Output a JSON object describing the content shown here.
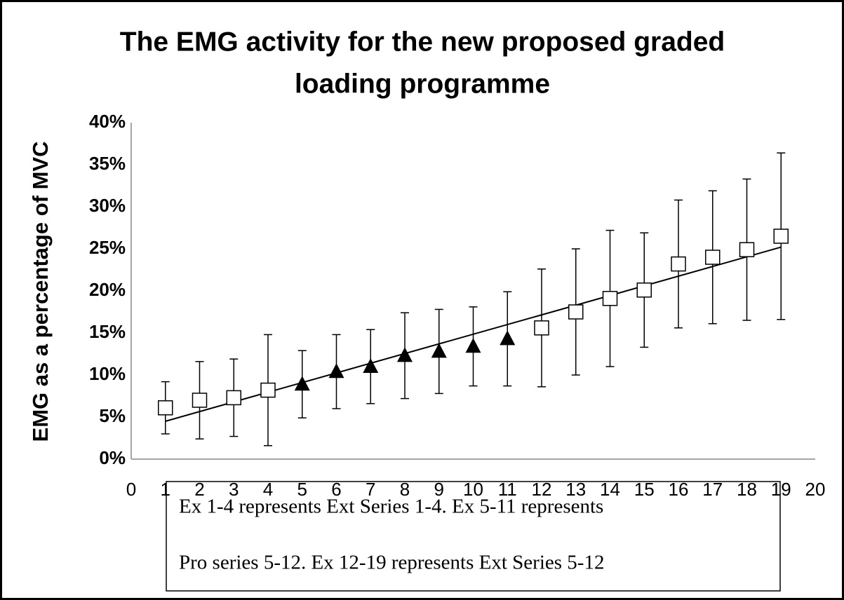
{
  "chart_data": {
    "type": "scatter",
    "title": [
      "The EMG activity for the new proposed graded",
      "loading programme"
    ],
    "y_label": "EMG as a percentage of MVC",
    "xlim": [
      0,
      20
    ],
    "xticks": [
      0,
      1,
      2,
      3,
      4,
      5,
      6,
      7,
      8,
      9,
      10,
      11,
      12,
      13,
      14,
      15,
      16,
      17,
      18,
      19,
      20
    ],
    "ylim": [
      0,
      40
    ],
    "yticks": [
      {
        "value": 0,
        "label": "0%"
      },
      {
        "value": 5,
        "label": "5%"
      },
      {
        "value": 10,
        "label": "10%"
      },
      {
        "value": 15,
        "label": "15%"
      },
      {
        "value": 20,
        "label": "20%"
      },
      {
        "value": 25,
        "label": "25%"
      },
      {
        "value": 30,
        "label": "30%"
      },
      {
        "value": 35,
        "label": "35%"
      },
      {
        "value": 40,
        "label": "40%"
      }
    ],
    "grid": false,
    "series": [
      {
        "marker": "square-open",
        "color": "#000000",
        "x": [
          1,
          2,
          3,
          4,
          12,
          13,
          14,
          15,
          16,
          17,
          18,
          19
        ],
        "values": [
          6.1,
          7.0,
          7.3,
          8.2,
          15.6,
          17.5,
          19.1,
          20.1,
          23.2,
          24.0,
          24.9,
          26.5
        ],
        "errors": [
          3.1,
          4.6,
          4.6,
          6.6,
          7.0,
          7.5,
          8.1,
          6.8,
          7.6,
          7.9,
          8.4,
          9.9
        ]
      },
      {
        "marker": "triangle-filled",
        "color": "#000000",
        "x": [
          5,
          6,
          7,
          8,
          9,
          10,
          11
        ],
        "values": [
          8.9,
          10.4,
          11.0,
          12.3,
          12.8,
          13.4,
          14.3
        ],
        "errors": [
          4.0,
          4.4,
          4.4,
          5.1,
          5.0,
          4.7,
          5.6
        ]
      }
    ],
    "trendline": {
      "x": [
        1,
        19
      ],
      "values": [
        4.5,
        25.2
      ],
      "color": "#000000"
    },
    "note": [
      "Ex 1-4 represents Ext Series 1-4. Ex 5-11 represents",
      "Pro series 5-12.  Ex 12-19 represents Ext Series 5-12"
    ]
  }
}
